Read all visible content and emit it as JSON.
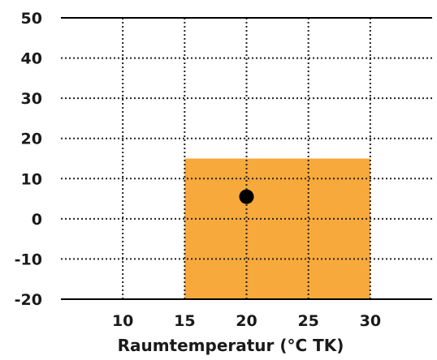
{
  "chart_data": {
    "type": "scatter",
    "title": "",
    "xlabel": "Raumtemperatur (°C TK)",
    "ylabel": "",
    "xlim": [
      5,
      35
    ],
    "ylim": [
      -20,
      50
    ],
    "x_ticks": [
      10,
      15,
      20,
      25,
      30
    ],
    "y_ticks": [
      50,
      40,
      30,
      20,
      10,
      0,
      -10,
      -20
    ],
    "grid": "dotted",
    "region": {
      "x_range": [
        15,
        30
      ],
      "y_range": [
        -20,
        15
      ],
      "color": "#f7a93b"
    },
    "points": [
      {
        "x": 20,
        "y": 5.5
      }
    ],
    "point_color": "#000000",
    "axis_color": "#000000"
  }
}
